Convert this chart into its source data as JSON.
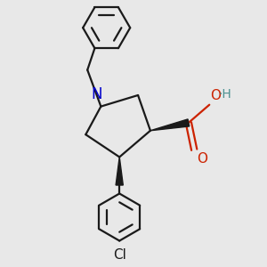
{
  "bg_color": "#e8e8e8",
  "line_color": "#1a1a1a",
  "n_color": "#0000cc",
  "o_color": "#cc2200",
  "oh_color": "#4a9090",
  "lw": 1.6,
  "figsize": [
    3.0,
    3.0
  ],
  "dpi": 100,
  "xlim": [
    -1.4,
    1.8
  ],
  "ylim": [
    -2.4,
    2.2
  ]
}
